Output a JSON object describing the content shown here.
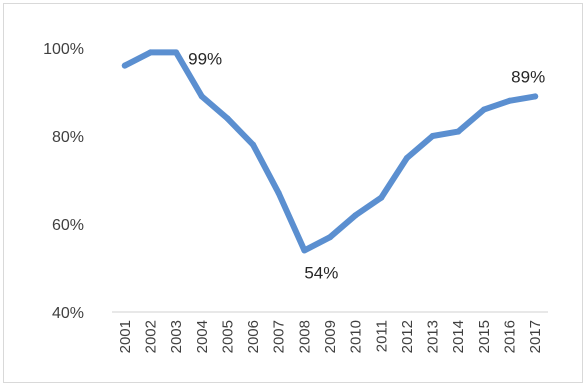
{
  "chart_data": {
    "type": "line",
    "title": "",
    "xlabel": "",
    "ylabel": "",
    "categories": [
      "2001",
      "2002",
      "2003",
      "2004",
      "2005",
      "2006",
      "2007",
      "2008",
      "2009",
      "2010",
      "2011",
      "2012",
      "2013",
      "2014",
      "2015",
      "2016",
      "2017"
    ],
    "series": [
      {
        "values": [
          96,
          99,
          99,
          89,
          84,
          78,
          67,
          54,
          57,
          62,
          66,
          75,
          80,
          81,
          86,
          88,
          89
        ],
        "color": "#5b8fd0"
      }
    ],
    "ylim": [
      40,
      100
    ],
    "y_ticks": [
      "40%",
      "60%",
      "80%",
      "100%"
    ],
    "y_tick_values": [
      40,
      60,
      80,
      100
    ],
    "grid": false,
    "legend": "none",
    "annotations": [
      {
        "text": "99%",
        "index": 2
      },
      {
        "text": "54%",
        "index": 7
      },
      {
        "text": "89%",
        "index": 16
      }
    ]
  }
}
